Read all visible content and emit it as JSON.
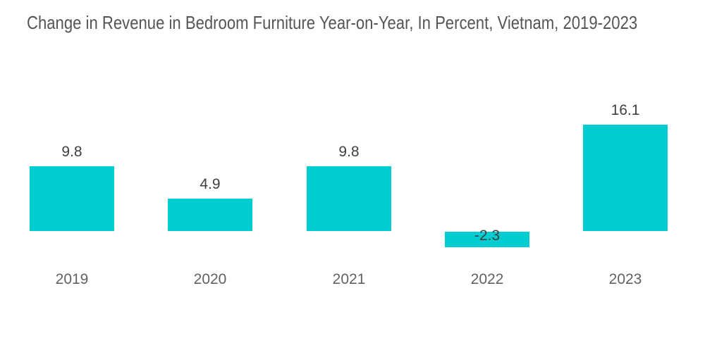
{
  "chart_data": {
    "type": "bar",
    "title": "Change in Revenue in Bedroom Furniture Year-on-Year, In Percent, Vietnam, 2019-2023",
    "categories": [
      "2019",
      "2020",
      "2021",
      "2022",
      "2023"
    ],
    "values": [
      9.8,
      4.9,
      9.8,
      -2.3,
      16.1
    ],
    "value_labels": [
      "9.8",
      "4.9",
      "9.8",
      "-2.3",
      "16.1"
    ],
    "xlabel": "",
    "ylabel": "",
    "unit": "percent",
    "ylim": [
      -3,
      18
    ],
    "grid": false,
    "legend": "none",
    "axes_visible": false,
    "data_labels_visible": true,
    "colors": {
      "bar": "#00CDD2",
      "title_text": "#555555",
      "value_labels": "#404040",
      "axis_labels": "#616161",
      "background": "#FFFFFF"
    }
  }
}
